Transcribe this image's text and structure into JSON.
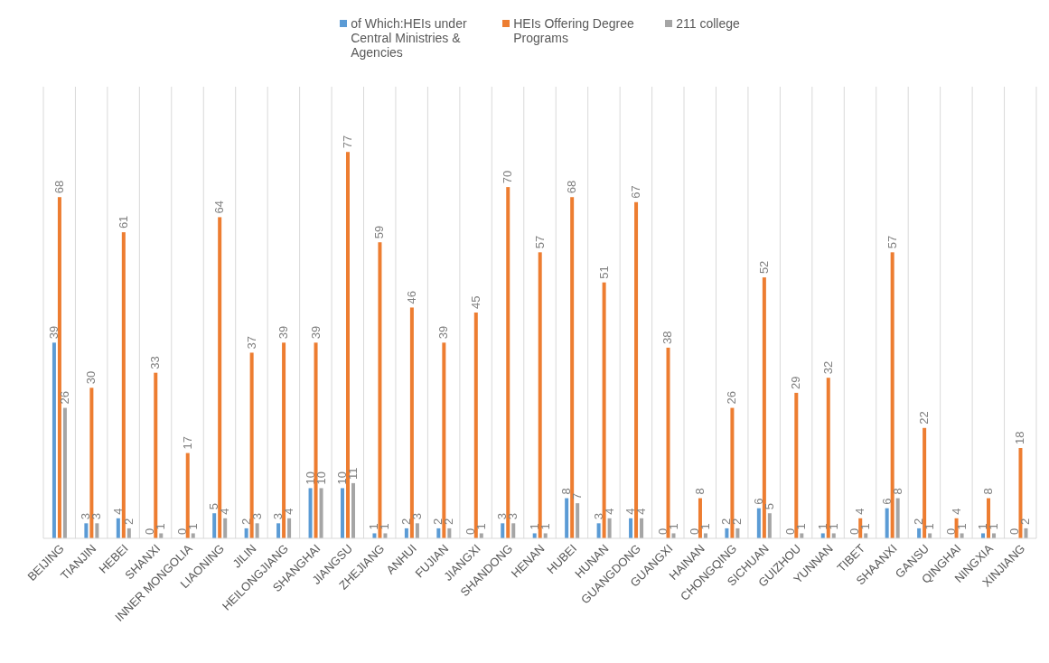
{
  "chart_data": {
    "type": "bar",
    "categories": [
      "BEIJING",
      "TIANJIN",
      "HEBEI",
      "SHANXI",
      "INNER MONGOLIA",
      "LIAONING",
      "JILIN",
      "HEILONGJIANG",
      "SHANGHAI",
      "JIANGSU",
      "ZHEJIANG",
      "ANHUI",
      "FUJIAN",
      "JIANGXI",
      "SHANDONG",
      "HENAN",
      "HUBEI",
      "HUNAN",
      "GUANGDONG",
      "GUANGXI",
      "HAINAN",
      "CHONGQING",
      "SICHUAN",
      "GUIZHOU",
      "YUNNAN",
      "TIBET",
      "SHAANXI",
      "GANSU",
      "QINGHAI",
      "NINGXIA",
      "XINJIANG"
    ],
    "series": [
      {
        "name": "of Which:HEIs under Central Ministries & Agencies",
        "color": "#5b9bd5",
        "values": [
          39,
          3,
          4,
          0,
          0,
          5,
          2,
          3,
          10,
          10,
          1,
          2,
          2,
          0,
          3,
          1,
          8,
          3,
          4,
          0,
          0,
          2,
          6,
          0,
          1,
          0,
          6,
          2,
          0,
          1,
          0
        ]
      },
      {
        "name": "HEIs Offering Degree Programs",
        "color": "#ed7d31",
        "values": [
          68,
          30,
          61,
          33,
          17,
          64,
          37,
          39,
          39,
          77,
          59,
          46,
          39,
          45,
          70,
          57,
          68,
          51,
          67,
          38,
          8,
          26,
          52,
          29,
          32,
          4,
          57,
          22,
          4,
          8,
          18
        ]
      },
      {
        "name": "211 college",
        "color": "#a5a5a5",
        "values": [
          26,
          3,
          2,
          1,
          1,
          4,
          3,
          4,
          10,
          11,
          1,
          3,
          2,
          1,
          3,
          1,
          7,
          4,
          4,
          1,
          1,
          2,
          5,
          1,
          1,
          1,
          8,
          1,
          1,
          1,
          2
        ]
      }
    ],
    "ylim": [
      0,
      90
    ],
    "tick_labels": "x",
    "grid": "x",
    "legend": "top",
    "data_labels": true
  }
}
